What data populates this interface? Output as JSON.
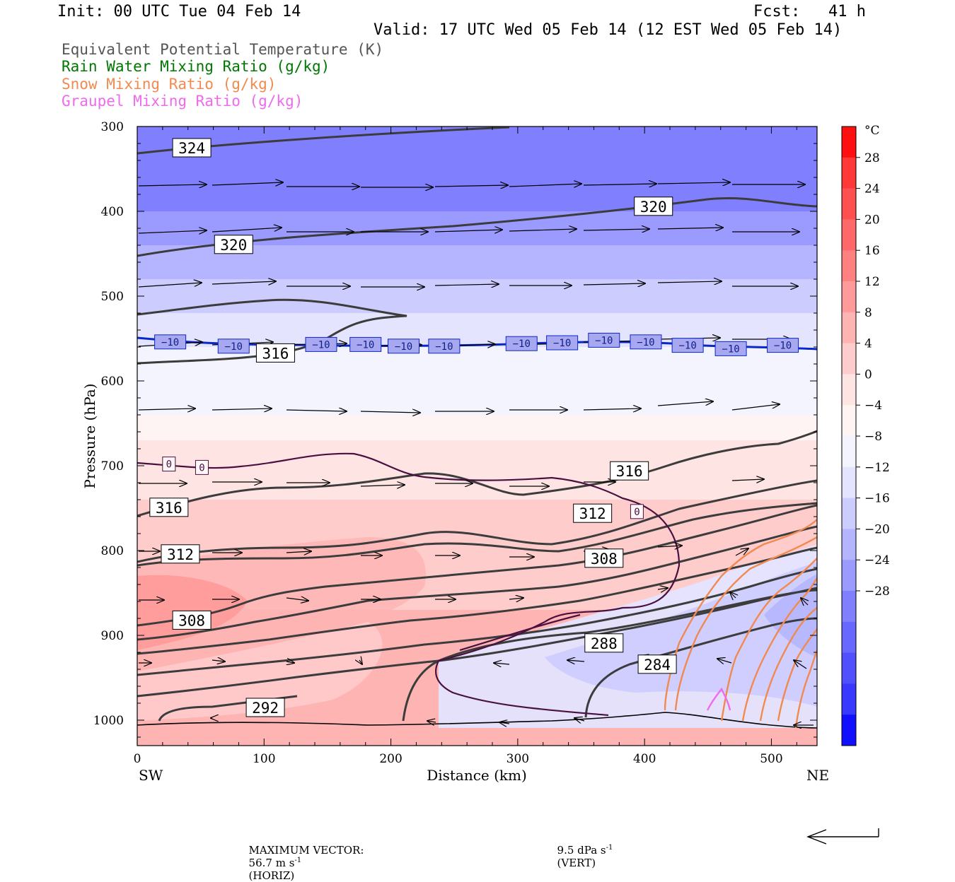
{
  "header": {
    "init": "Init: 00 UTC Tue 04 Feb 14",
    "fcst": "Fcst:   41 h",
    "valid": "Valid: 17 UTC Wed 05 Feb 14 (12 EST Wed 05 Feb 14)"
  },
  "legend": [
    {
      "label": "Equivalent Potential Temperature (K)",
      "color": "#555555"
    },
    {
      "label": "Rain Water Mixing Ratio (g/kg)",
      "color": "#007700"
    },
    {
      "label": "Snow Mixing Ratio (g/kg)",
      "color": "#f08a50"
    },
    {
      "label": "Graupel Mixing Ratio (g/kg)",
      "color": "#ee6aee"
    }
  ],
  "footer": {
    "max_vector_label": "MAXIMUM VECTOR:",
    "horiz": "56.7 m s",
    "horiz_unit": "(HORIZ)",
    "vert": "9.5 dPa s",
    "vert_unit": "(VERT)",
    "exponent": "-1"
  },
  "chart_data": {
    "type": "contour",
    "xlabel": "Distance (km)",
    "ylabel": "Pressure (hPa)",
    "xlim": [
      0,
      536
    ],
    "ylim": [
      1030,
      300
    ],
    "x_ticks": [
      0,
      100,
      200,
      300,
      400,
      500
    ],
    "y_ticks": [
      300,
      400,
      500,
      600,
      700,
      800,
      900,
      1000
    ],
    "x_end_labels": {
      "left": "SW",
      "right": "NE"
    },
    "y_scale": "linear-pressure",
    "fill_variable_unit": "°C",
    "colorbar_ticks": [
      28,
      24,
      20,
      16,
      12,
      8,
      4,
      0,
      -4,
      -8,
      -12,
      -16,
      -20,
      -24,
      -28
    ],
    "colorbar_colors": [
      "#ff1010",
      "#ff3838",
      "#ff5050",
      "#ff6868",
      "#ff8080",
      "#ff9a9a",
      "#ffb4b4",
      "#ffcccc",
      "#ffe4e4",
      "#fff4f4",
      "#f4f4ff",
      "#e4e4ff",
      "#ccccff",
      "#b4b4ff",
      "#9a9aff",
      "#8080ff",
      "#6868ff",
      "#5050ff",
      "#3838ff",
      "#1010ff"
    ],
    "temperature_bands": [
      {
        "p": 300,
        "t": -29
      },
      {
        "p": 360,
        "t": -28
      },
      {
        "p": 400,
        "t": -25
      },
      {
        "p": 440,
        "t": -22
      },
      {
        "p": 480,
        "t": -19
      },
      {
        "p": 520,
        "t": -15
      },
      {
        "p": 560,
        "t": -11
      },
      {
        "p": 600,
        "t": -8
      },
      {
        "p": 640,
        "t": -5
      },
      {
        "p": 670,
        "t": -3
      },
      {
        "p": 700,
        "t": -1
      },
      {
        "p": 740,
        "t": 2
      },
      {
        "p": 800,
        "t": 4
      },
      {
        "p": 870,
        "t": 6
      },
      {
        "p": 1030,
        "t": 7
      }
    ],
    "theta_e_labels": [
      {
        "x": 43,
        "p": 325,
        "text": "324"
      },
      {
        "x": 407,
        "p": 394,
        "text": "320"
      },
      {
        "x": 76,
        "p": 439,
        "text": "320"
      },
      {
        "x": 109,
        "p": 567,
        "text": "316"
      },
      {
        "x": 388,
        "p": 706,
        "text": "316"
      },
      {
        "x": 25,
        "p": 749,
        "text": "316"
      },
      {
        "x": 359,
        "p": 756,
        "text": "312"
      },
      {
        "x": 34,
        "p": 804,
        "text": "312"
      },
      {
        "x": 368,
        "p": 809,
        "text": "308"
      },
      {
        "x": 43,
        "p": 882,
        "text": "308"
      },
      {
        "x": 368,
        "p": 909,
        "text": "288"
      },
      {
        "x": 410,
        "p": 934,
        "text": "284"
      },
      {
        "x": 101,
        "p": 985,
        "text": "292"
      }
    ],
    "temperature_contour_labels": [
      {
        "x": 26,
        "p": 554,
        "text": "−10"
      },
      {
        "x": 76,
        "p": 559,
        "text": "−10"
      },
      {
        "x": 145,
        "p": 557,
        "text": "−10"
      },
      {
        "x": 180,
        "p": 557,
        "text": "−10"
      },
      {
        "x": 210,
        "p": 559,
        "text": "−10"
      },
      {
        "x": 242,
        "p": 559,
        "text": "−10"
      },
      {
        "x": 303,
        "p": 556,
        "text": "−10"
      },
      {
        "x": 335,
        "p": 555,
        "text": "−10"
      },
      {
        "x": 368,
        "p": 552,
        "text": "−10"
      },
      {
        "x": 401,
        "p": 554,
        "text": "−10"
      },
      {
        "x": 434,
        "p": 558,
        "text": "−10"
      },
      {
        "x": 468,
        "p": 562,
        "text": "−10"
      },
      {
        "x": 509,
        "p": 558,
        "text": "−10"
      },
      {
        "x": 25,
        "p": 698,
        "text": "0"
      },
      {
        "x": 51,
        "p": 702,
        "text": "0"
      },
      {
        "x": 394,
        "p": 754,
        "text": "0"
      }
    ]
  }
}
